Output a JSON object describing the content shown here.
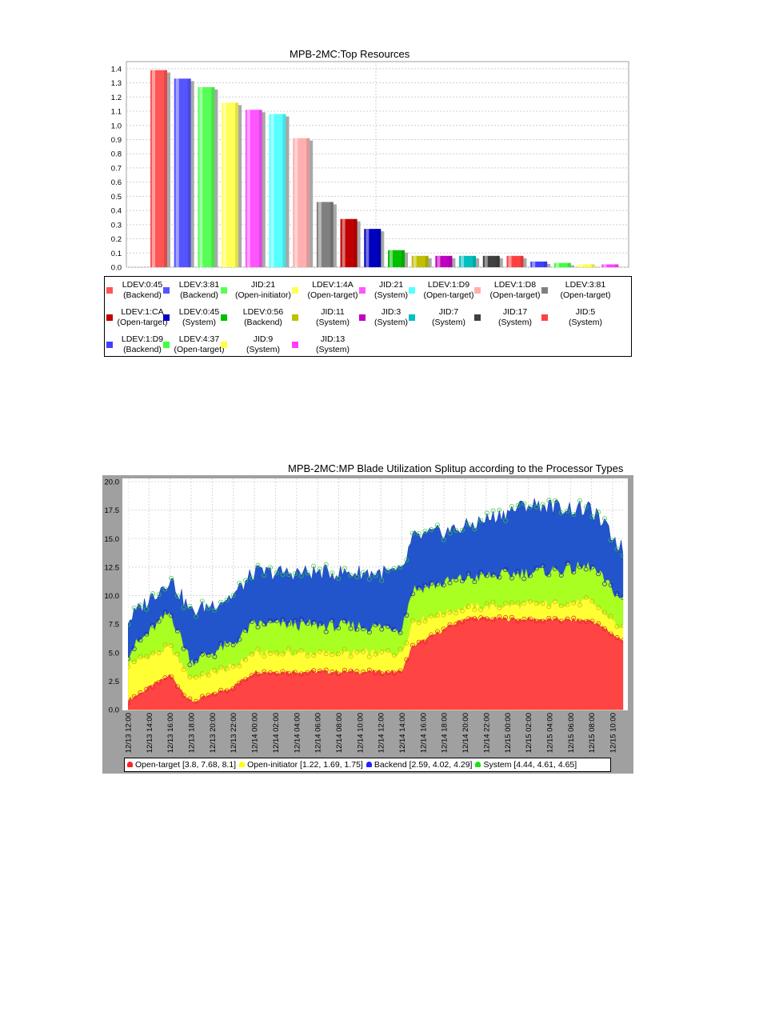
{
  "chart_data": [
    {
      "type": "bar",
      "title": "MPB-2MC:Top Resources",
      "ylim": [
        0,
        1.45
      ],
      "yticks": [
        "0.0",
        "0.1",
        "0.2",
        "0.3",
        "0.4",
        "0.5",
        "0.6",
        "0.7",
        "0.8",
        "0.9",
        "1.0",
        "1.1",
        "1.2",
        "1.3",
        "1.4"
      ],
      "grid": true,
      "legend_position": "bottom",
      "bars": [
        {
          "label": "LDEV:0:45",
          "sub": "(Backend)",
          "value": 1.39,
          "color": "#ff5555"
        },
        {
          "label": "LDEV:3:81",
          "sub": "(Backend)",
          "value": 1.33,
          "color": "#5555ff"
        },
        {
          "label": "JID:21",
          "sub": "(Open-initiator)",
          "value": 1.27,
          "color": "#55ff55"
        },
        {
          "label": "LDEV:1:4A",
          "sub": "(Open-target)",
          "value": 1.16,
          "color": "#ffff55"
        },
        {
          "label": "JID:21",
          "sub": "(System)",
          "value": 1.11,
          "color": "#ff55ff"
        },
        {
          "label": "LDEV:1:D9",
          "sub": "(Open-target)",
          "value": 1.08,
          "color": "#55ffff"
        },
        {
          "label": "LDEV:1:D8",
          "sub": "(Open-target)",
          "value": 0.91,
          "color": "#ffafaf"
        },
        {
          "label": "LDEV:3:81",
          "sub": "(Open-target)",
          "value": 0.46,
          "color": "#808080"
        },
        {
          "label": "LDEV:1:CA",
          "sub": "(Open-target)",
          "value": 0.34,
          "color": "#c00000"
        },
        {
          "label": "LDEV:0:45",
          "sub": "(System)",
          "value": 0.27,
          "color": "#0000c0"
        },
        {
          "label": "LDEV:0:56",
          "sub": "(Backend)",
          "value": 0.12,
          "color": "#00c000"
        },
        {
          "label": "JID:11",
          "sub": "(System)",
          "value": 0.08,
          "color": "#c0c000"
        },
        {
          "label": "JID:3",
          "sub": "(System)",
          "value": 0.08,
          "color": "#c000c0"
        },
        {
          "label": "JID:7",
          "sub": "(System)",
          "value": 0.08,
          "color": "#00c0c0"
        },
        {
          "label": "JID:17",
          "sub": "(System)",
          "value": 0.08,
          "color": "#404040"
        },
        {
          "label": "JID:5",
          "sub": "(System)",
          "value": 0.08,
          "color": "#ff4040"
        },
        {
          "label": "LDEV:1:D9",
          "sub": "(Backend)",
          "value": 0.04,
          "color": "#4040ff"
        },
        {
          "label": "LDEV:4:37",
          "sub": "(Open-target)",
          "value": 0.03,
          "color": "#40ff40"
        },
        {
          "label": "JID:9",
          "sub": "(System)",
          "value": 0.02,
          "color": "#ffff40"
        },
        {
          "label": "JID:13",
          "sub": "(System)",
          "value": 0.02,
          "color": "#ff40ff"
        }
      ]
    },
    {
      "type": "area",
      "title": "MPB-2MC:MP Blade Utilization Splitup according to the Processor Types",
      "stacked": true,
      "ylim": [
        0,
        20
      ],
      "yticks": [
        "0.0",
        "2.5",
        "5.0",
        "7.5",
        "10.0",
        "12.5",
        "15.0",
        "17.5",
        "20.0"
      ],
      "grid": true,
      "legend_position": "bottom",
      "x_start": "12/13 12:00",
      "x_end": "12/15 11:00",
      "xticks": [
        "12/13 12:00",
        "12/13 14:00",
        "12/13 16:00",
        "12/13 18:00",
        "12/13 20:00",
        "12/13 22:00",
        "12/14 00:00",
        "12/14 02:00",
        "12/14 04:00",
        "12/14 06:00",
        "12/14 08:00",
        "12/14 10:00",
        "12/14 12:00",
        "12/14 14:00",
        "12/14 16:00",
        "12/14 18:00",
        "12/14 20:00",
        "12/14 22:00",
        "12/15 00:00",
        "12/15 02:00",
        "12/15 04:00",
        "12/15 06:00",
        "12/15 08:00",
        "12/15 10:00"
      ],
      "series": [
        {
          "name": "Open-target",
          "legend": "Open-target [3.8, 7.68, 8.1]",
          "color": "#ff4444",
          "cumulative_points": [
            [
              "12/13 12:00",
              0.8
            ],
            [
              "12/13 16:00",
              3.0
            ],
            [
              "12/13 18:00",
              0.6
            ],
            [
              "12/13 22:00",
              2.0
            ],
            [
              "12/14 00:00",
              3.3
            ],
            [
              "12/14 14:00",
              3.3
            ],
            [
              "12/14 15:00",
              5.5
            ],
            [
              "12/14 20:00",
              8.0
            ],
            [
              "12/15 08:00",
              7.8
            ],
            [
              "12/15 11:00",
              6.0
            ]
          ]
        },
        {
          "name": "Open-initiator",
          "legend": "Open-initiator [1.22, 1.69, 1.75]",
          "color": "#ffff33",
          "cumulative_points": [
            [
              "12/13 12:00",
              4.0
            ],
            [
              "12/13 16:00",
              5.5
            ],
            [
              "12/13 18:00",
              2.8
            ],
            [
              "12/13 22:00",
              3.8
            ],
            [
              "12/14 00:00",
              5.0
            ],
            [
              "12/14 14:00",
              5.0
            ],
            [
              "12/14 15:00",
              7.8
            ],
            [
              "12/14 20:00",
              9.0
            ],
            [
              "12/15 08:00",
              9.5
            ],
            [
              "12/15 11:00",
              7.0
            ]
          ]
        },
        {
          "name": "Backend",
          "legend": "Backend [2.59, 4.02, 4.29]",
          "color": "#aaff22",
          "cumulative_points": [
            [
              "12/13 12:00",
              5.0
            ],
            [
              "12/13 16:00",
              8.5
            ],
            [
              "12/13 18:00",
              4.2
            ],
            [
              "12/13 22:00",
              5.8
            ],
            [
              "12/14 00:00",
              7.5
            ],
            [
              "12/14 14:00",
              7.2
            ],
            [
              "12/14 15:00",
              10.5
            ],
            [
              "12/14 20:00",
              11.5
            ],
            [
              "12/15 08:00",
              12.5
            ],
            [
              "12/15 11:00",
              9.5
            ]
          ]
        },
        {
          "name": "System",
          "legend": "System [4.44, 4.61, 4.65]",
          "color": "#2255cc",
          "cumulative_points": [
            [
              "12/13 12:00",
              7.8
            ],
            [
              "12/13 16:00",
              11.5
            ],
            [
              "12/13 18:00",
              8.5
            ],
            [
              "12/13 22:00",
              10.0
            ],
            [
              "12/14 00:00",
              12.0
            ],
            [
              "12/14 14:00",
              12.0
            ],
            [
              "12/14 15:00",
              15.0
            ],
            [
              "12/14 20:00",
              16.0
            ],
            [
              "12/15 02:00",
              18.0
            ],
            [
              "12/15 08:00",
              17.5
            ],
            [
              "12/15 11:00",
              14.0
            ]
          ]
        }
      ]
    }
  ]
}
